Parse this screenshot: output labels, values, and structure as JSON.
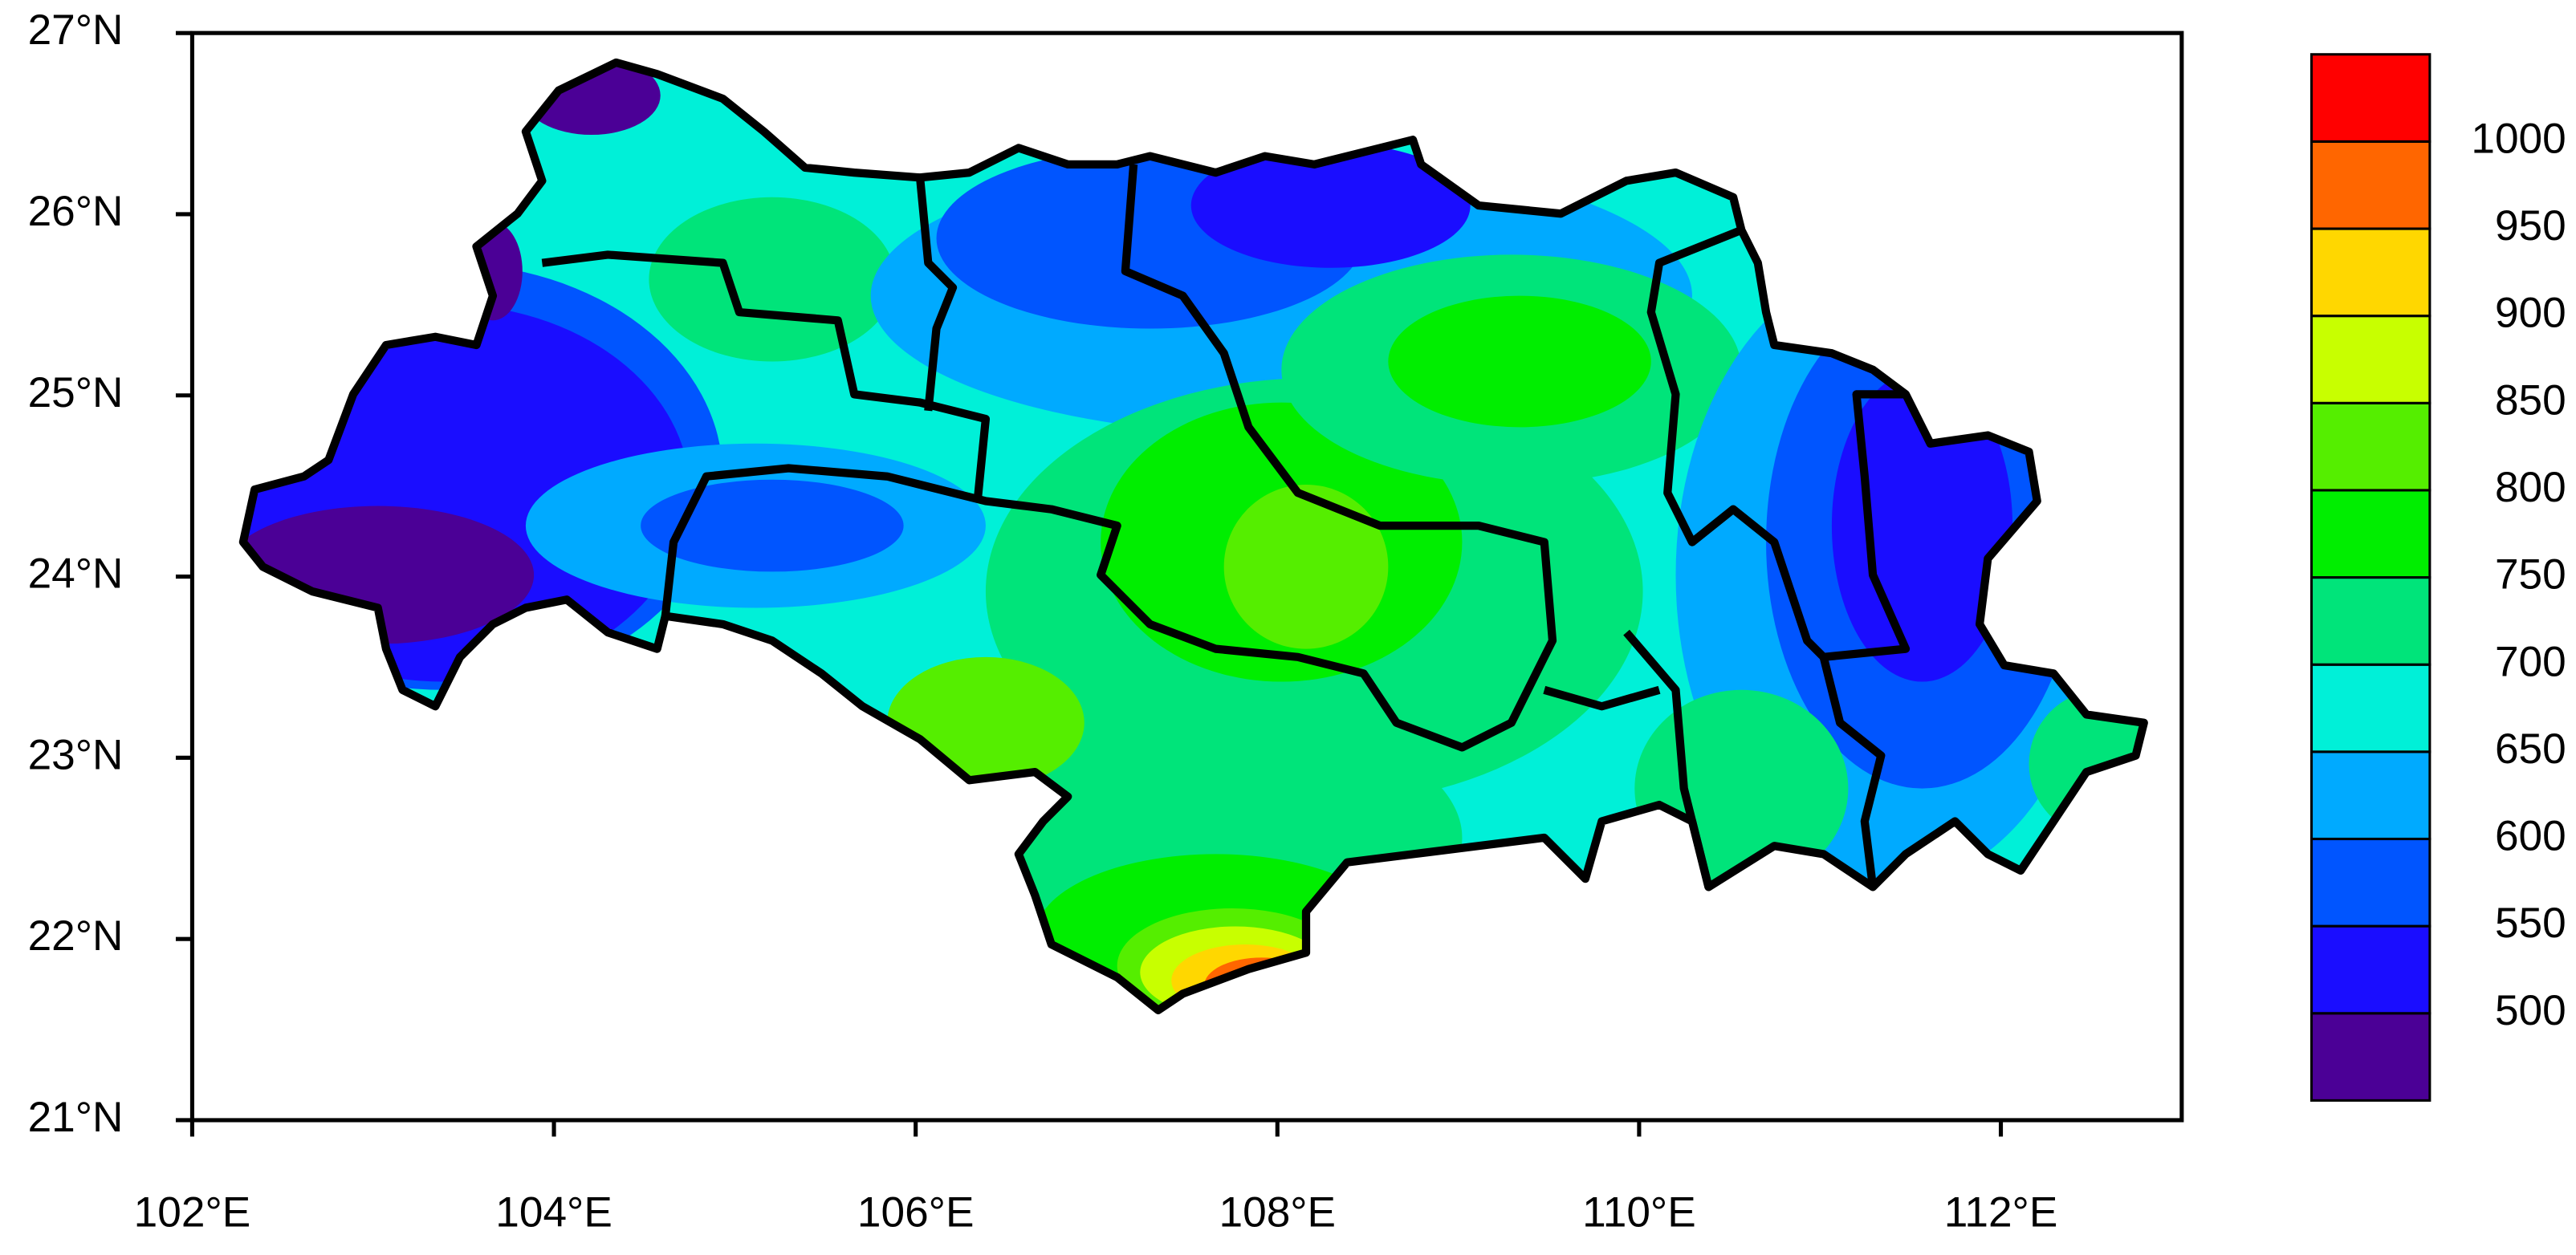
{
  "chart_data": {
    "type": "map",
    "xlim": [
      102,
      113
    ],
    "ylim": [
      21,
      27
    ],
    "xticks": [
      {
        "value": 102,
        "label": "102°E"
      },
      {
        "value": 104,
        "label": "104°E"
      },
      {
        "value": 106,
        "label": "106°E"
      },
      {
        "value": 108,
        "label": "108°E"
      },
      {
        "value": 110,
        "label": "110°E"
      },
      {
        "value": 112,
        "label": "112°E"
      }
    ],
    "yticks": [
      {
        "value": 21,
        "label": "21°N"
      },
      {
        "value": 22,
        "label": "22°N"
      },
      {
        "value": 23,
        "label": "23°N"
      },
      {
        "value": 24,
        "label": "24°N"
      },
      {
        "value": 25,
        "label": "25°N"
      },
      {
        "value": 26,
        "label": "26°N"
      },
      {
        "value": 27,
        "label": "27°N"
      }
    ],
    "levels": [
      500,
      550,
      600,
      650,
      700,
      750,
      800,
      850,
      900,
      950,
      1000
    ],
    "colors": [
      "#4b0096",
      "#1a0dff",
      "#0055ff",
      "#00aaff",
      "#00f0d8",
      "#00e47a",
      "#00ee00",
      "#55ee00",
      "#c8ff00",
      "#ffd700",
      "#ff6600",
      "#ff0000"
    ]
  }
}
